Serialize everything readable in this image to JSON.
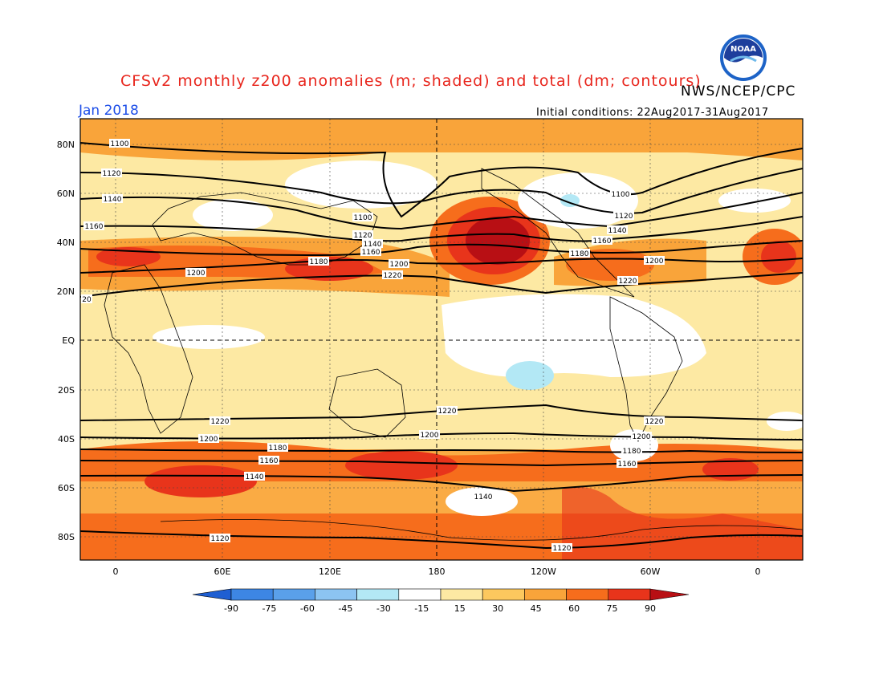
{
  "title": "CFSv2 monthly z200 anomalies (m; shaded) and total (dm; contours)",
  "agency": "NWS/NCEP/CPC",
  "valid_month": "Jan 2018",
  "initial_conditions": "Initial conditions: 22Aug2017-31Aug2017",
  "logo_text": "NOAA",
  "map": {
    "lat_ticks": [
      "80N",
      "60N",
      "40N",
      "20N",
      "EQ",
      "20S",
      "40S",
      "60S",
      "80S"
    ],
    "lon_ticks": [
      "0",
      "60E",
      "120E",
      "180",
      "120W",
      "60W",
      "0"
    ],
    "contour_labels": [
      "1100",
      "1120",
      "1140",
      "1160",
      "1180",
      "1200",
      "1220",
      "20"
    ]
  },
  "colorbar": {
    "labels": [
      "-90",
      "-75",
      "-60",
      "-45",
      "-30",
      "-15",
      "15",
      "30",
      "45",
      "60",
      "75",
      "90"
    ],
    "colors": [
      "#2a6fdc",
      "#3d86e4",
      "#5aa0ea",
      "#8cc4f2",
      "#b3e8f5",
      "#ffffff",
      "#fde9a3",
      "#fcc85e",
      "#f9a43a",
      "#f66d1c",
      "#e8341b",
      "#b80f14"
    ]
  }
}
